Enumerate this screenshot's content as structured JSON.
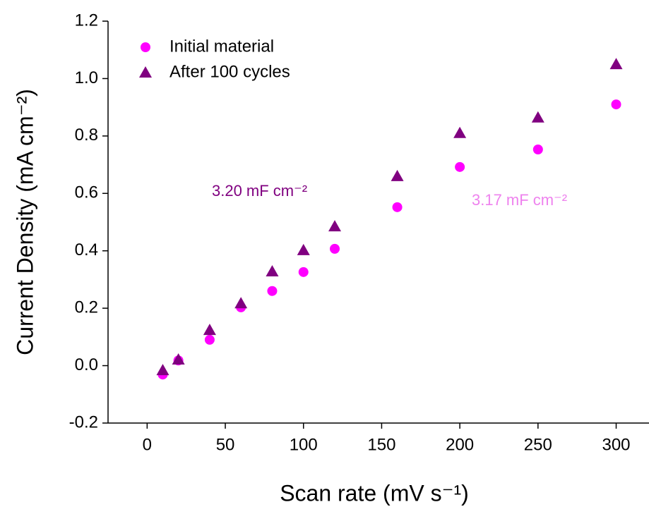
{
  "chart_data": {
    "type": "scatter",
    "xlabel": "Scan rate (mV s⁻¹)",
    "ylabel": "Current Density (mA cm⁻²)",
    "xlim": [
      -25,
      321
    ],
    "ylim": [
      -0.2,
      1.2
    ],
    "xticks": [
      0,
      50,
      100,
      150,
      200,
      250,
      300
    ],
    "yticks": [
      -0.2,
      {
        "value": 0,
        "label": "0.0"
      },
      0.2,
      0.4,
      0.6,
      0.8,
      {
        "value": 1,
        "label": "1.0"
      },
      1.2
    ],
    "legend": "upper left",
    "series": [
      {
        "name": "Initial material",
        "color": "#ff00ff",
        "marker": "circle",
        "x": [
          10,
          20,
          40,
          60,
          80,
          100,
          120,
          160,
          200,
          250,
          300
        ],
        "values": [
          -0.031,
          0.018,
          0.09,
          0.203,
          0.26,
          0.326,
          0.407,
          0.552,
          0.692,
          0.753,
          0.91
        ]
      },
      {
        "name": "After 100 cycles",
        "color": "#800080",
        "marker": "triangle",
        "x": [
          10,
          20,
          40,
          60,
          80,
          100,
          120,
          160,
          200,
          250,
          300
        ],
        "values": [
          -0.016,
          0.021,
          0.124,
          0.217,
          0.328,
          0.402,
          0.485,
          0.66,
          0.81,
          0.864,
          1.05
        ]
      }
    ],
    "annotations": [
      {
        "text": "3.20 mF cm⁻²",
        "color": "#800080"
      },
      {
        "text": "3.17 mF cm⁻²",
        "color": "#ee82ee"
      }
    ]
  }
}
